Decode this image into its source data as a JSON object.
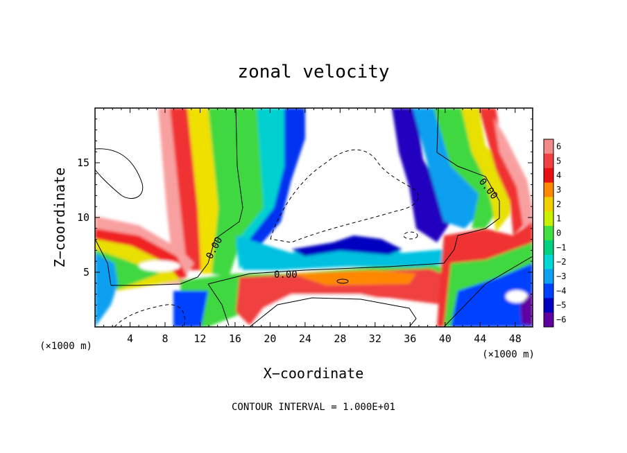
{
  "chart_data": {
    "type": "heatmap",
    "title": "zonal velocity",
    "xlabel": "X−coordinate",
    "ylabel": "Z−coordinate",
    "x_unit": "(×1000 m)",
    "z_unit": "(×1000 m)",
    "xlim": [
      0,
      50
    ],
    "ylim": [
      0,
      20
    ],
    "x_ticks": [
      4,
      8,
      12,
      16,
      20,
      24,
      28,
      32,
      36,
      40,
      44,
      48
    ],
    "x_tick_labels": [
      "4",
      "8",
      "12",
      "16",
      "20",
      "24",
      "28",
      "32",
      "36",
      "40",
      "44",
      "48"
    ],
    "y_ticks": [
      5,
      10,
      15
    ],
    "y_tick_labels": [
      "5",
      "10",
      "15"
    ],
    "colorbar": {
      "levels": [
        6,
        5,
        4,
        3,
        2,
        1,
        0,
        -1,
        -2,
        -3,
        -4,
        -5,
        -6
      ],
      "labels": [
        "6",
        "5",
        "4",
        "3",
        "2",
        "1",
        "0",
        "−1",
        "−2",
        "−3",
        "−4",
        "−5",
        "−6"
      ],
      "colors": [
        "#f28a8a",
        "#f04040",
        "#e81010",
        "#ff8800",
        "#f0d000",
        "#c8f000",
        "#40e040",
        "#00d080",
        "#00d8d8",
        "#10a0f0",
        "#0040ff",
        "#0000c0",
        "#6000a0"
      ]
    },
    "contour_labels": [
      "0.00",
      "0.00",
      "0.00"
    ],
    "footnote": "CONTOUR INTERVAL = 1.000E+01"
  }
}
